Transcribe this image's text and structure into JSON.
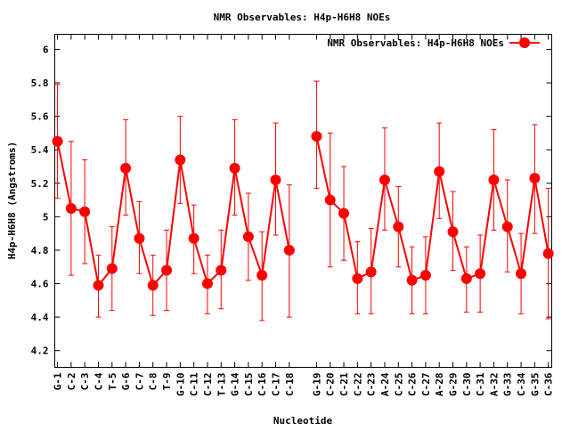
{
  "chart_data": {
    "type": "line",
    "title": "NMR Observables: H4p-H6H8 NOEs",
    "xlabel": "Nucleotide",
    "ylabel": "H4p-H6H8 (Angstroms)",
    "ylim": [
      4.1,
      6.09
    ],
    "yticks": [
      "4.2",
      "4.4",
      "4.6",
      "4.8",
      "5",
      "5.2",
      "5.4",
      "5.6",
      "5.8",
      "6"
    ],
    "grid": false,
    "legend_position": "top-right",
    "series": [
      {
        "name": "NMR Observables: H4p-H6H8 NOEs",
        "color": "#ff0000",
        "segments": [
          {
            "categories": [
              "G-1",
              "C-2",
              "C-3",
              "C-4",
              "T-5",
              "G-6",
              "C-7",
              "C-8",
              "T-9",
              "G-10",
              "C-11",
              "C-12",
              "T-13",
              "G-14",
              "C-15",
              "C-16",
              "C-17",
              "C-18"
            ],
            "values": [
              5.45,
              5.05,
              5.03,
              4.59,
              4.69,
              5.29,
              4.87,
              4.59,
              4.68,
              5.34,
              4.87,
              4.6,
              4.68,
              5.29,
              4.88,
              4.65,
              5.22,
              4.8
            ],
            "err_high": [
              5.79,
              5.45,
              5.34,
              4.77,
              4.94,
              5.58,
              5.09,
              4.77,
              4.92,
              5.6,
              5.07,
              4.77,
              4.92,
              5.58,
              5.14,
              4.91,
              5.56,
              5.19
            ],
            "err_low": [
              5.11,
              4.65,
              4.72,
              4.4,
              4.44,
              5.01,
              4.66,
              4.41,
              4.44,
              5.08,
              4.66,
              4.42,
              4.45,
              5.01,
              4.62,
              4.38,
              4.89,
              4.4
            ]
          },
          {
            "categories": [
              "G-19",
              "C-20",
              "C-21",
              "C-22",
              "C-23",
              "A-24",
              "C-25",
              "C-26",
              "C-27",
              "A-28",
              "G-29",
              "C-30",
              "C-31",
              "A-32",
              "G-33",
              "C-34",
              "G-35",
              "C-36"
            ],
            "values": [
              5.48,
              5.1,
              5.02,
              4.63,
              4.67,
              5.22,
              4.94,
              4.62,
              4.65,
              5.27,
              4.91,
              4.63,
              4.66,
              5.22,
              4.94,
              4.66,
              5.23,
              4.78
            ],
            "err_high": [
              5.81,
              5.5,
              5.3,
              4.85,
              4.93,
              5.53,
              5.18,
              4.82,
              4.88,
              5.56,
              5.15,
              4.82,
              4.89,
              5.52,
              5.22,
              4.9,
              5.55,
              5.17
            ],
            "err_low": [
              5.17,
              4.7,
              4.74,
              4.42,
              4.42,
              4.92,
              4.7,
              4.42,
              4.42,
              4.99,
              4.68,
              4.43,
              4.43,
              4.92,
              4.67,
              4.42,
              4.9,
              4.39
            ]
          }
        ]
      }
    ]
  }
}
